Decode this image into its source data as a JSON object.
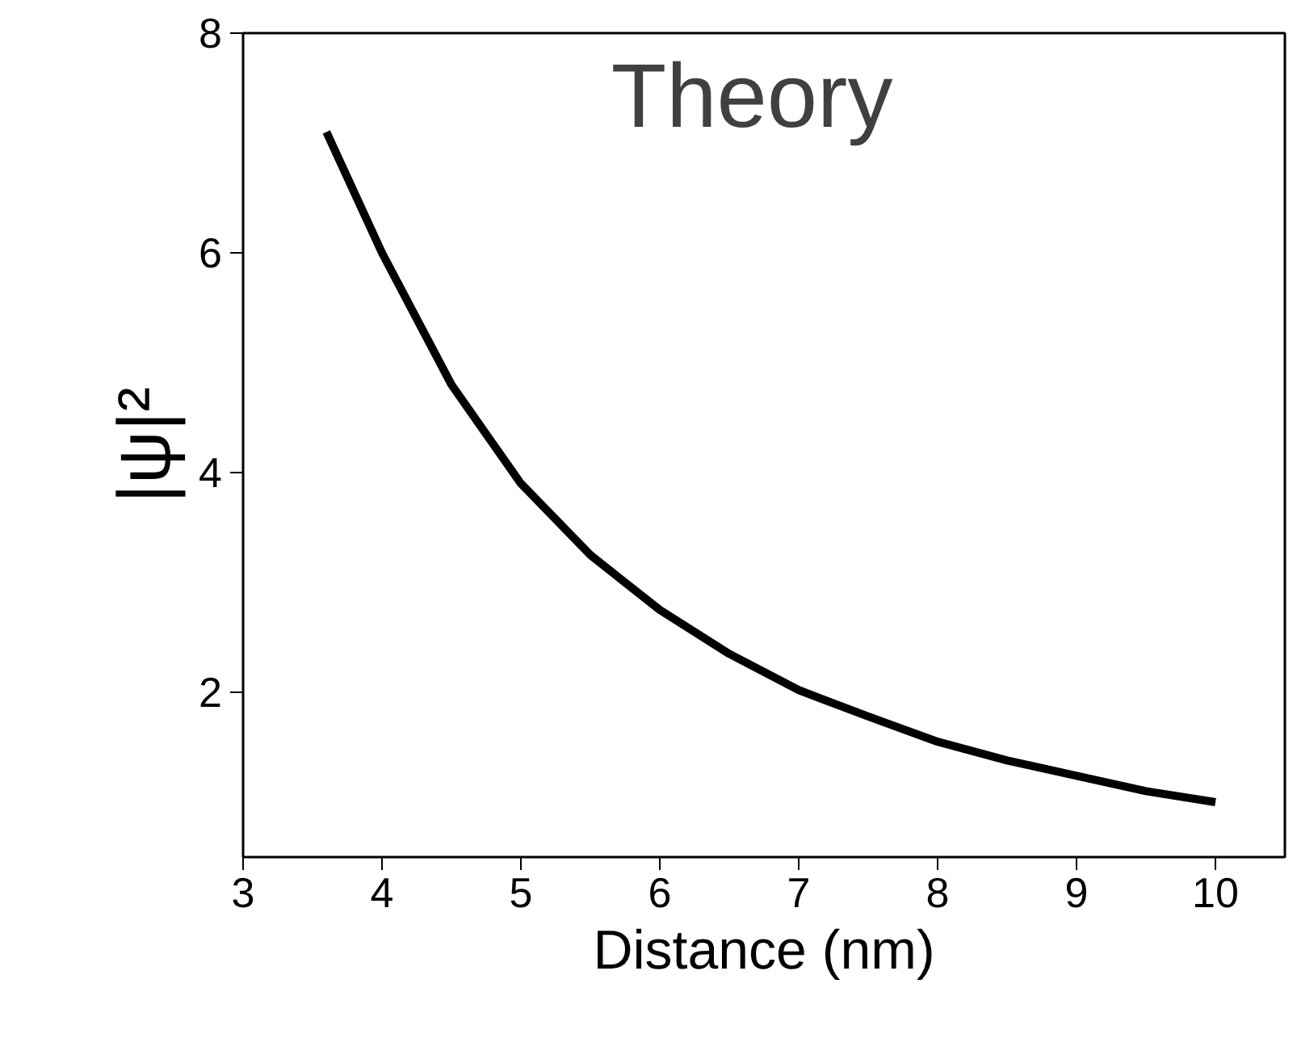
{
  "chart_data": {
    "type": "line",
    "xlabel": "Distance (nm)",
    "ylabel": "|ψ|²",
    "annotations": [
      "Theory"
    ],
    "x": [
      3.6,
      4,
      4.5,
      5,
      5.5,
      6,
      6.5,
      7,
      7.5,
      8,
      8.5,
      9,
      9.5,
      10
    ],
    "series": [
      {
        "color": "#000000",
        "values": [
          7.1,
          6.0,
          4.8,
          3.9,
          3.25,
          2.75,
          2.35,
          2.02,
          1.78,
          1.55,
          1.38,
          1.24,
          1.1,
          1.0
        ]
      }
    ],
    "xlim": [
      3,
      10.5
    ],
    "ylim": [
      0.5,
      8
    ],
    "xticks": [
      3,
      4,
      5,
      6,
      7,
      8,
      9,
      10
    ],
    "yticks": [
      2,
      4,
      6,
      8
    ],
    "grid": false,
    "marker": "none",
    "line_style": "solid"
  }
}
